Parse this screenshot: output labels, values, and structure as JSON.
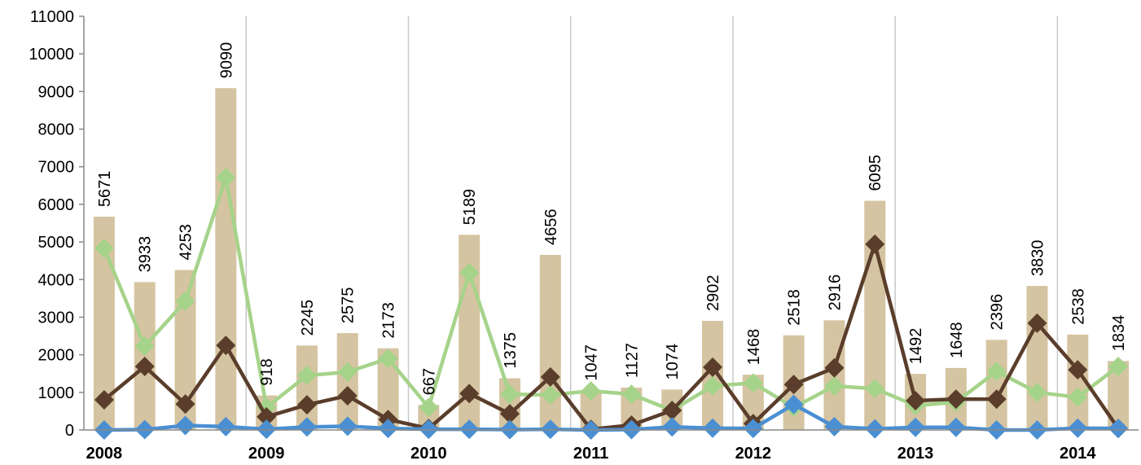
{
  "chart_data": {
    "type": "bar",
    "categories": [
      "2008",
      null,
      null,
      null,
      "2009",
      null,
      null,
      null,
      "2010",
      null,
      null,
      null,
      "2011",
      null,
      null,
      null,
      "2012",
      null,
      null,
      null,
      "2013",
      null,
      null,
      null,
      "2014",
      null
    ],
    "series": [
      {
        "type": "bar",
        "color": "#d5c4a1",
        "values": [
          5671,
          3933,
          4253,
          9090,
          918,
          2245,
          2575,
          2173,
          667,
          5189,
          1375,
          4656,
          1047,
          1127,
          1074,
          2902,
          1468,
          2518,
          2916,
          6095,
          1492,
          1648,
          2396,
          3830,
          2538,
          1834
        ]
      },
      {
        "type": "line",
        "color": "#a6d38a",
        "values": [
          4830,
          2230,
          3420,
          6710,
          600,
          1450,
          1540,
          1900,
          600,
          4180,
          950,
          930,
          1040,
          950,
          520,
          1170,
          1250,
          600,
          1170,
          1100,
          650,
          740,
          1560,
          1000,
          870,
          1690
        ]
      },
      {
        "type": "line",
        "color": "#5a3d2b",
        "values": [
          800,
          1690,
          690,
          2250,
          350,
          670,
          910,
          280,
          40,
          970,
          430,
          1410,
          20,
          130,
          520,
          1670,
          170,
          1210,
          1650,
          4940,
          780,
          820,
          820,
          2840,
          1600,
          40
        ]
      },
      {
        "type": "line",
        "color": "#4a8fd2",
        "values": [
          0,
          10,
          120,
          90,
          20,
          80,
          100,
          40,
          20,
          20,
          10,
          20,
          0,
          10,
          80,
          50,
          40,
          680,
          90,
          30,
          70,
          70,
          0,
          0,
          50,
          40
        ]
      }
    ],
    "ylim": [
      0,
      11000
    ],
    "yticks": [
      0,
      1000,
      2000,
      3000,
      4000,
      5000,
      6000,
      7000,
      8000,
      9000,
      10000,
      11000
    ]
  }
}
